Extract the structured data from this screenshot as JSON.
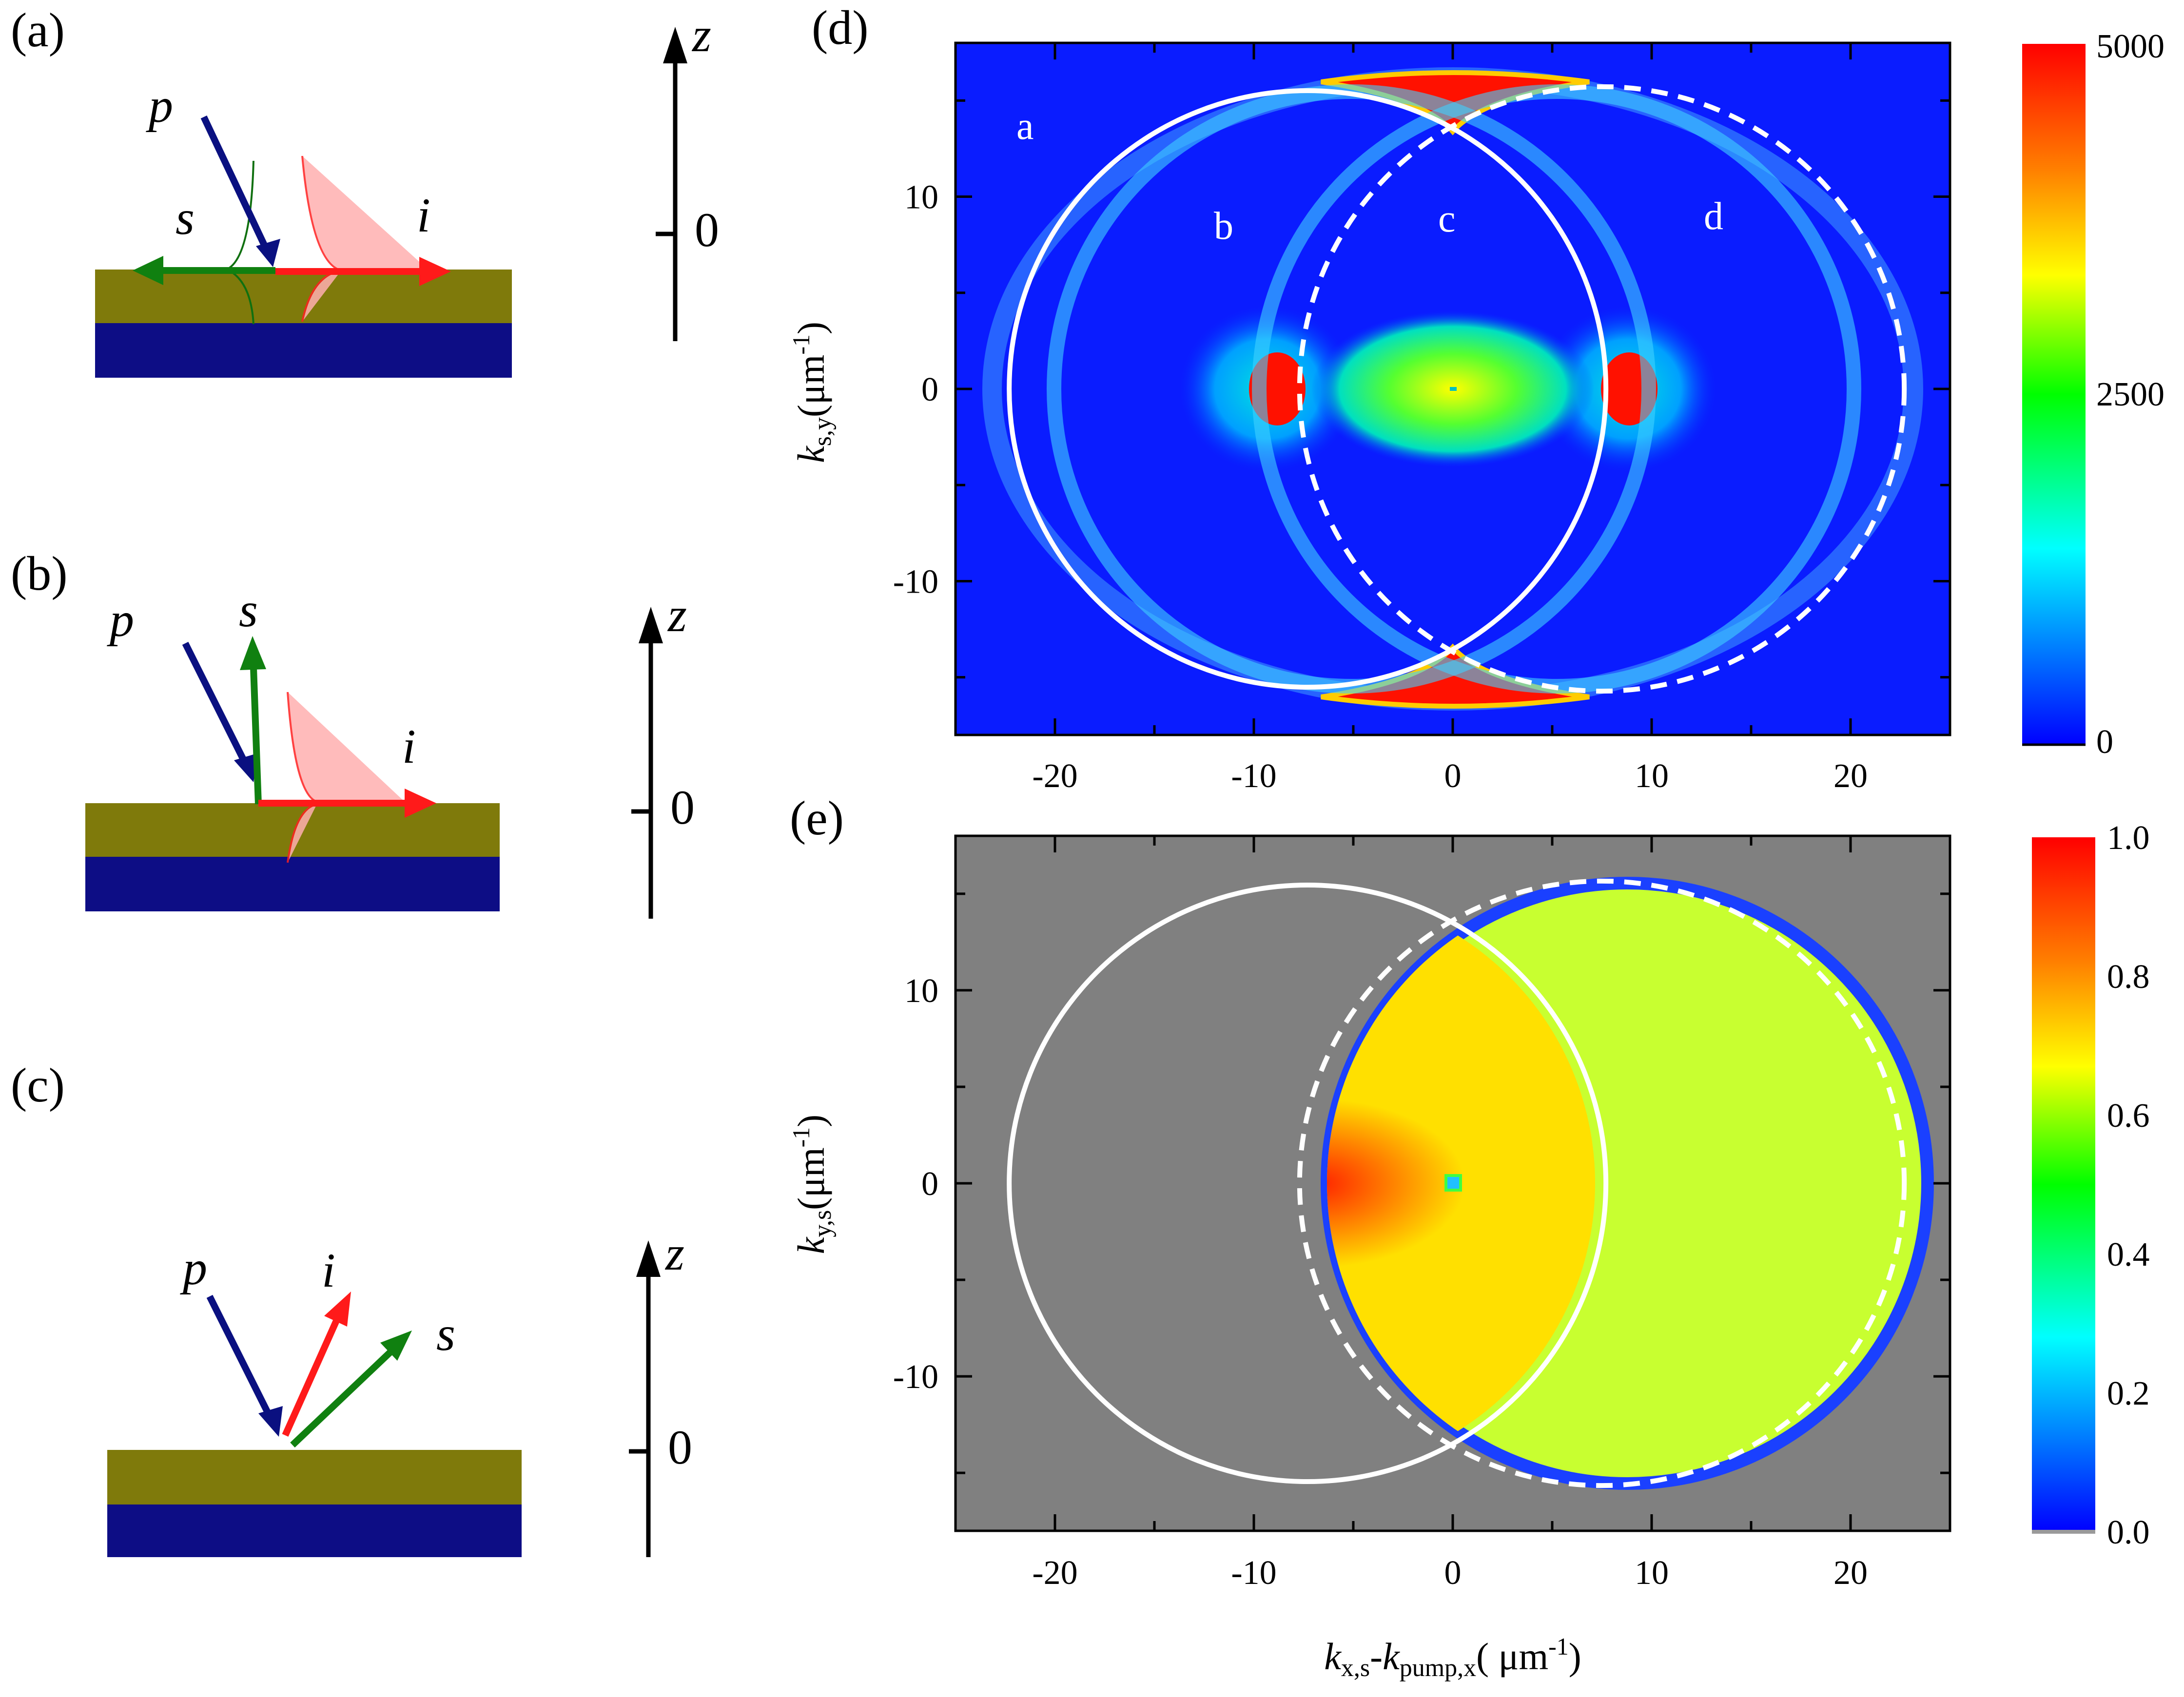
{
  "panels": {
    "a": {
      "label": "(a)",
      "beams": {
        "p": "p",
        "s": "s",
        "i": "i"
      },
      "axis": {
        "z": "z",
        "zero": "0"
      }
    },
    "b": {
      "label": "(b)",
      "beams": {
        "p": "p",
        "s": "s",
        "i": "i"
      },
      "axis": {
        "z": "z",
        "zero": "0"
      }
    },
    "c": {
      "label": "(c)",
      "beams": {
        "p": "p",
        "s": "s",
        "i": "i"
      },
      "axis": {
        "z": "z",
        "zero": "0"
      }
    },
    "d": {
      "label": "(d)",
      "regions": [
        "a",
        "b",
        "c",
        "d"
      ]
    },
    "e": {
      "label": "(e)"
    }
  },
  "chart_data": [
    {
      "panel": "d",
      "type": "heatmap",
      "xlim": [
        -25,
        25
      ],
      "ylim": [
        -18,
        18
      ],
      "x_ticks": [
        "-20",
        "-10",
        "0",
        "10",
        "20"
      ],
      "y_ticks": [
        "-10",
        "0",
        "10"
      ],
      "ylabel_parts": {
        "k": "k",
        "sub": "s,y",
        "unit": "(μm",
        "exp": "-1",
        "close": ")"
      },
      "colorbar": {
        "ticks": [
          "5000",
          "2500",
          "0"
        ],
        "range": [
          0,
          5000
        ]
      },
      "overlays": [
        {
          "style": "solid",
          "center": [
            -7.3,
            0
          ],
          "radius": 15
        },
        {
          "style": "dashed",
          "center": [
            7.5,
            0
          ],
          "radius": 15.2
        }
      ],
      "colors": {
        "low": "#0a14ff",
        "high": "#ff1100"
      }
    },
    {
      "panel": "e",
      "type": "heatmap",
      "xlim": [
        -25,
        25
      ],
      "ylim": [
        -18,
        18
      ],
      "x_ticks": [
        "-20",
        "-10",
        "0",
        "10",
        "20"
      ],
      "y_ticks": [
        "-10",
        "0",
        "10"
      ],
      "xlabel_parts": {
        "k1": "k",
        "sub1": "x,s",
        "dash": "-",
        "k2": "k",
        "sub2": "pump,x",
        "unit": "( μm",
        "exp": "-1",
        "close": ")"
      },
      "ylabel_parts": {
        "k": "k",
        "sub": "y,s",
        "unit": "(μm",
        "exp": "-1",
        "close": ")"
      },
      "colorbar": {
        "ticks": [
          "1.0",
          "0.8",
          "0.6",
          "0.4",
          "0.2",
          "0.0"
        ],
        "range": [
          0,
          1
        ]
      },
      "overlays": [
        {
          "style": "solid",
          "center": [
            -7.3,
            0
          ],
          "radius": 15
        },
        {
          "style": "dashed",
          "center": [
            7.5,
            0
          ],
          "radius": 15.2
        }
      ],
      "colors": {
        "background": "#808080",
        "high": "#ff2200"
      }
    }
  ]
}
